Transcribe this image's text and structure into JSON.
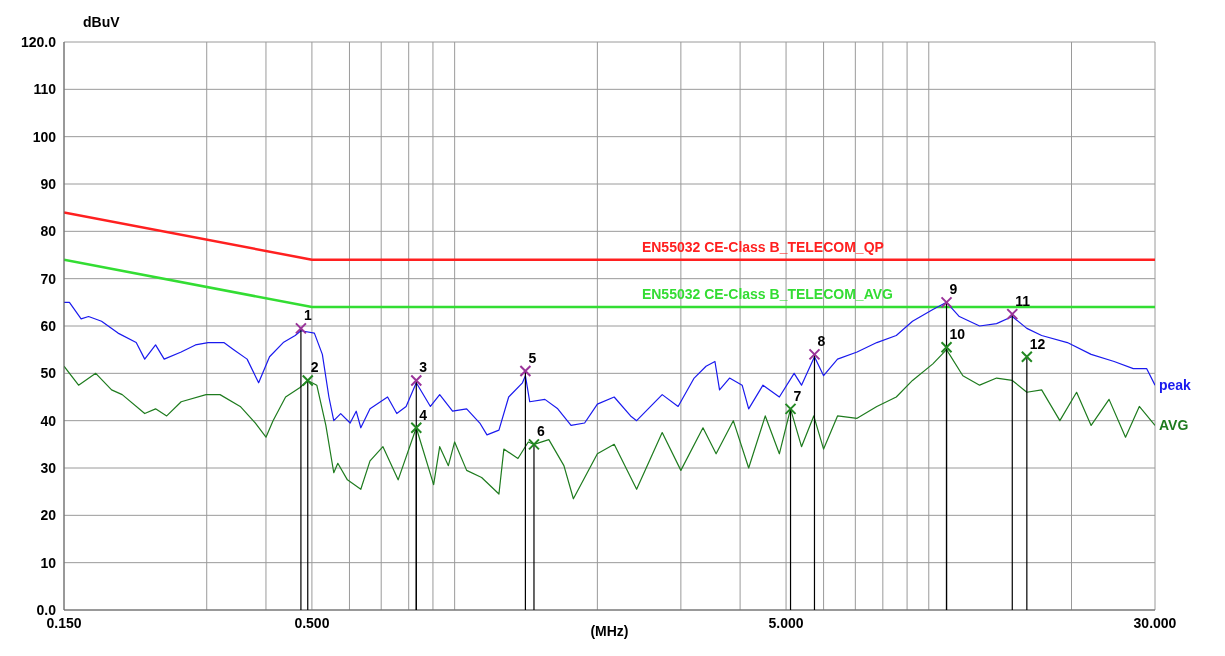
{
  "chart_data": {
    "type": "line",
    "xlabel": "(MHz)",
    "ylabel": "dBuV",
    "log": "x",
    "grid": true,
    "legend": false,
    "marker": "none",
    "line_style": "solid",
    "xlim": [
      0.15,
      30
    ],
    "ylim": [
      0,
      120
    ],
    "xticks": [
      {
        "value": 0.15,
        "label": "0.150"
      },
      {
        "value": 0.3,
        "label": null
      },
      {
        "value": 0.4,
        "label": null
      },
      {
        "value": 0.5,
        "label": "0.500"
      },
      {
        "value": 0.6,
        "label": null
      },
      {
        "value": 0.7,
        "label": null
      },
      {
        "value": 0.8,
        "label": null
      },
      {
        "value": 0.9,
        "label": null
      },
      {
        "value": 1,
        "label": null
      },
      {
        "value": 2,
        "label": null
      },
      {
        "value": 3,
        "label": null
      },
      {
        "value": 4,
        "label": null
      },
      {
        "value": 5,
        "label": "5.000"
      },
      {
        "value": 6,
        "label": null
      },
      {
        "value": 7,
        "label": null
      },
      {
        "value": 8,
        "label": null
      },
      {
        "value": 9,
        "label": null
      },
      {
        "value": 10,
        "label": null
      },
      {
        "value": 20,
        "label": null
      },
      {
        "value": 30,
        "label": "30.000"
      }
    ],
    "yticks": [
      {
        "value": 0,
        "label": "0.0"
      },
      10,
      20,
      30,
      40,
      50,
      60,
      70,
      80,
      90,
      100,
      110,
      {
        "value": 120,
        "label": "120.0"
      }
    ],
    "series": [
      {
        "name": "EN55032 CE-Class B_TELECOM_QP",
        "color": "#ff2020",
        "x": [
          0.15,
          0.5,
          30
        ],
        "values": [
          84,
          74,
          74
        ]
      },
      {
        "name": "EN55032 CE-Class B_TELECOM_AVG",
        "color": "#33dd33",
        "x": [
          0.15,
          0.5,
          30
        ],
        "values": [
          74,
          64,
          64
        ]
      },
      {
        "name": "peak",
        "color": "#1a1aee",
        "x": [
          0.15,
          0.154,
          0.163,
          0.169,
          0.18,
          0.195,
          0.213,
          0.222,
          0.234,
          0.244,
          0.265,
          0.284,
          0.302,
          0.326,
          0.342,
          0.365,
          0.386,
          0.407,
          0.435,
          0.461,
          0.474,
          0.506,
          0.526,
          0.543,
          0.556,
          0.575,
          0.602,
          0.62,
          0.634,
          0.663,
          0.722,
          0.755,
          0.79,
          0.83,
          0.889,
          0.93,
          0.99,
          1.06,
          1.13,
          1.17,
          1.24,
          1.3,
          1.39,
          1.41,
          1.44,
          1.55,
          1.65,
          1.76,
          1.88,
          2.0,
          2.17,
          2.35,
          2.42,
          2.74,
          2.96,
          3.2,
          3.39,
          3.54,
          3.62,
          3.8,
          4.04,
          4.17,
          4.47,
          4.84,
          5.2,
          5.39,
          5.74,
          6.0,
          6.42,
          7.06,
          7.77,
          8.54,
          9.24,
          10.2,
          10.9,
          11.6,
          12.8,
          13.9,
          15.0,
          16.1,
          17.3,
          19.6,
          22.0,
          24.6,
          27.0,
          28.8,
          30
        ],
        "values": [
          65,
          65,
          61.5,
          62,
          61,
          58.5,
          56.5,
          53,
          56,
          53,
          54.5,
          56,
          56.5,
          56.5,
          55,
          53,
          48,
          53.5,
          56.5,
          58,
          59,
          58.5,
          54,
          45,
          40,
          41.5,
          39.5,
          42,
          38.5,
          42.5,
          45,
          41.5,
          43,
          48,
          43,
          45.5,
          42,
          42.5,
          39.5,
          37,
          38,
          45,
          48,
          49.5,
          44,
          44.5,
          42.5,
          39,
          39.5,
          43.5,
          45,
          41,
          40,
          45.5,
          43,
          49,
          51.5,
          52.5,
          46.5,
          49,
          47.5,
          42.5,
          47.5,
          45,
          50,
          47.5,
          53.5,
          49.5,
          53,
          54.5,
          56.5,
          58,
          61,
          63.5,
          65,
          62,
          60,
          60.5,
          62,
          59.5,
          58,
          56.5,
          54,
          52.5,
          51,
          51,
          47.5
        ]
      },
      {
        "name": "AVG",
        "color": "#1e7b1e",
        "x": [
          0.15,
          0.161,
          0.175,
          0.189,
          0.199,
          0.222,
          0.234,
          0.247,
          0.265,
          0.299,
          0.32,
          0.353,
          0.38,
          0.4,
          0.414,
          0.44,
          0.472,
          0.49,
          0.512,
          0.535,
          0.556,
          0.567,
          0.594,
          0.634,
          0.663,
          0.706,
          0.76,
          0.83,
          0.903,
          0.93,
          0.97,
          1.0,
          1.06,
          1.14,
          1.24,
          1.27,
          1.36,
          1.43,
          1.47,
          1.58,
          1.7,
          1.78,
          2.0,
          2.17,
          2.42,
          2.74,
          3.0,
          3.34,
          3.56,
          3.87,
          4.17,
          4.52,
          4.84,
          5.11,
          5.39,
          5.72,
          6.0,
          6.42,
          7.06,
          7.77,
          8.54,
          9.24,
          10.2,
          10.9,
          11.8,
          12.8,
          13.9,
          15.0,
          16.1,
          17.3,
          18.9,
          20.5,
          22.0,
          24.0,
          26.0,
          27.8,
          30
        ],
        "values": [
          51.5,
          47.5,
          50,
          46.5,
          45.5,
          41.5,
          42.5,
          41,
          44,
          45.5,
          45.5,
          43,
          39.5,
          36.5,
          40,
          45,
          47,
          48.5,
          47.5,
          39,
          29,
          31,
          27.5,
          25.5,
          31.5,
          34.5,
          27.5,
          38.5,
          26.5,
          34.5,
          30.5,
          35.5,
          29.5,
          28,
          24.5,
          34,
          32,
          35.5,
          35,
          36,
          30.5,
          23.5,
          33,
          35,
          25.5,
          37.5,
          29.5,
          38.5,
          33,
          40,
          30,
          41,
          33,
          42.5,
          34.5,
          41,
          34,
          41,
          40.5,
          43,
          45,
          48.5,
          52,
          55,
          49.5,
          47.5,
          49,
          48.5,
          46,
          46.5,
          40,
          46,
          39,
          44.5,
          36.5,
          43,
          39
        ]
      },
      {
        "type": "lollipop",
        "marker": "cross",
        "x": [
          0.474,
          0.49,
          0.83,
          0.83,
          1.41,
          1.47,
          5.11,
          5.74,
          10.9,
          10.9,
          15.0,
          16.1
        ],
        "values": [
          59.5,
          48.5,
          48.5,
          38.5,
          50.5,
          35,
          42.5,
          54,
          65,
          55.5,
          62.5,
          53.5
        ],
        "colors": [
          "#993399",
          "#228822",
          "#993399",
          "#228822",
          "#993399",
          "#228822",
          "#228822",
          "#993399",
          "#993399",
          "#228822",
          "#993399",
          "#228822"
        ]
      }
    ],
    "annotations": [
      {
        "text": "1",
        "x": 0.474,
        "y": 59.5
      },
      {
        "text": "2",
        "x": 0.49,
        "y": 48.5
      },
      {
        "text": "3",
        "x": 0.83,
        "y": 48.5
      },
      {
        "text": "4",
        "x": 0.83,
        "y": 38.5
      },
      {
        "text": "5",
        "x": 1.41,
        "y": 50.5
      },
      {
        "text": "6",
        "x": 1.47,
        "y": 35
      },
      {
        "text": "7",
        "x": 5.11,
        "y": 42.5
      },
      {
        "text": "8",
        "x": 5.74,
        "y": 54
      },
      {
        "text": "9",
        "x": 10.9,
        "y": 65
      },
      {
        "text": "10",
        "x": 10.9,
        "y": 55.5
      },
      {
        "text": "11",
        "x": 15.0,
        "y": 62.5
      },
      {
        "text": "12",
        "x": 16.1,
        "y": 53.5
      }
    ]
  }
}
